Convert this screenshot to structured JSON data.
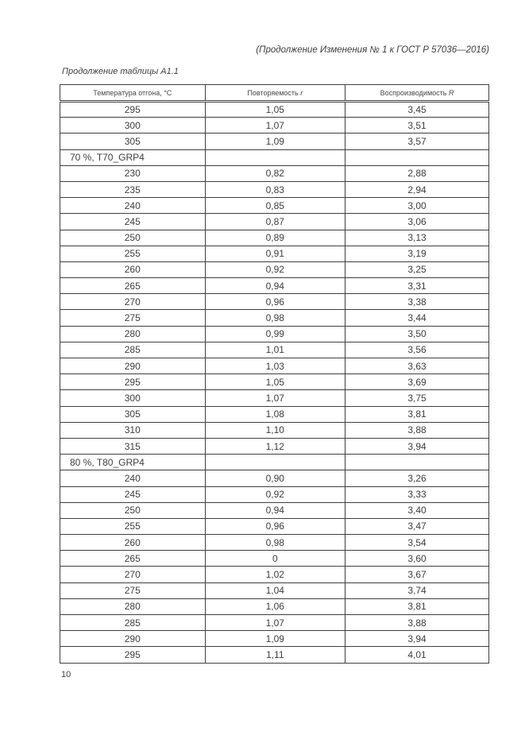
{
  "page": {
    "header_note": "(Продолжение Изменения № 1 к ГОСТ Р 57036—2016)",
    "table_caption": "Продолжение таблицы А1.1",
    "page_number": "10"
  },
  "table": {
    "columns": [
      {
        "label": "Температура отгона, °С",
        "symbol": ""
      },
      {
        "label": "Повторяемость",
        "symbol": "r"
      },
      {
        "label": "Воспроизводимость",
        "symbol": "R"
      }
    ],
    "rows": [
      {
        "section": false,
        "t": "295",
        "r": "1,05",
        "R": "3,45"
      },
      {
        "section": false,
        "t": "300",
        "r": "1,07",
        "R": "3,51"
      },
      {
        "section": false,
        "t": "305",
        "r": "1,09",
        "R": "3,57"
      },
      {
        "section": true,
        "label": "70 %, T70_GRP4"
      },
      {
        "section": false,
        "t": "230",
        "r": "0,82",
        "R": "2,88"
      },
      {
        "section": false,
        "t": "235",
        "r": "0,83",
        "R": "2,94"
      },
      {
        "section": false,
        "t": "240",
        "r": "0,85",
        "R": "3,00"
      },
      {
        "section": false,
        "t": "245",
        "r": "0,87",
        "R": "3,06"
      },
      {
        "section": false,
        "t": "250",
        "r": "0,89",
        "R": "3,13"
      },
      {
        "section": false,
        "t": "255",
        "r": "0,91",
        "R": "3,19"
      },
      {
        "section": false,
        "t": "260",
        "r": "0,92",
        "R": "3,25"
      },
      {
        "section": false,
        "t": "265",
        "r": "0,94",
        "R": "3,31"
      },
      {
        "section": false,
        "t": "270",
        "r": "0,96",
        "R": "3,38"
      },
      {
        "section": false,
        "t": "275",
        "r": "0,98",
        "R": "3,44"
      },
      {
        "section": false,
        "t": "280",
        "r": "0,99",
        "R": "3,50"
      },
      {
        "section": false,
        "t": "285",
        "r": "1,01",
        "R": "3,56"
      },
      {
        "section": false,
        "t": "290",
        "r": "1,03",
        "R": "3,63"
      },
      {
        "section": false,
        "t": "295",
        "r": "1,05",
        "R": "3,69"
      },
      {
        "section": false,
        "t": "300",
        "r": "1,07",
        "R": "3,75"
      },
      {
        "section": false,
        "t": "305",
        "r": "1,08",
        "R": "3,81"
      },
      {
        "section": false,
        "t": "310",
        "r": "1,10",
        "R": "3,88"
      },
      {
        "section": false,
        "t": "315",
        "r": "1,12",
        "R": "3,94"
      },
      {
        "section": true,
        "label": "80 %, T80_GRP4"
      },
      {
        "section": false,
        "t": "240",
        "r": "0,90",
        "R": "3,26"
      },
      {
        "section": false,
        "t": "245",
        "r": "0,92",
        "R": "3,33"
      },
      {
        "section": false,
        "t": "250",
        "r": "0,94",
        "R": "3,40"
      },
      {
        "section": false,
        "t": "255",
        "r": "0,96",
        "R": "3,47"
      },
      {
        "section": false,
        "t": "260",
        "r": "0,98",
        "R": "3,54"
      },
      {
        "section": false,
        "t": "265",
        "r": "0",
        "R": "3,60"
      },
      {
        "section": false,
        "t": "270",
        "r": "1,02",
        "R": "3,67"
      },
      {
        "section": false,
        "t": "275",
        "r": "1,04",
        "R": "3,74"
      },
      {
        "section": false,
        "t": "280",
        "r": "1,06",
        "R": "3,81"
      },
      {
        "section": false,
        "t": "285",
        "r": "1,07",
        "R": "3,88"
      },
      {
        "section": false,
        "t": "290",
        "r": "1,09",
        "R": "3,94"
      },
      {
        "section": false,
        "t": "295",
        "r": "1,11",
        "R": "4,01"
      }
    ]
  }
}
